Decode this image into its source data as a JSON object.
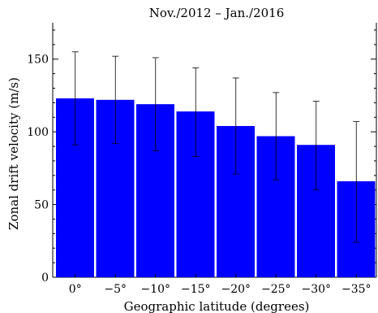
{
  "chart_data": {
    "type": "bar",
    "title": "Nov./2012 – Jan./2016",
    "xlabel": "Geographic latitude (degrees)",
    "ylabel": "Zonal drift velocity (m/s)",
    "categories": [
      "0°",
      "−5°",
      "−10°",
      "−15°",
      "−20°",
      "−25°",
      "−30°",
      "−35°"
    ],
    "values": [
      123,
      122,
      119,
      114,
      104,
      97,
      91,
      66
    ],
    "error_upper": [
      155,
      152,
      151,
      144,
      137,
      127,
      121,
      107
    ],
    "error_lower": [
      91,
      92,
      87,
      83,
      71,
      67,
      60,
      24
    ],
    "ylim": [
      0,
      175
    ],
    "yticks": [
      0,
      50,
      100,
      150
    ],
    "grid": false,
    "bar_color": "#0000ff",
    "error_color": "#000000"
  }
}
